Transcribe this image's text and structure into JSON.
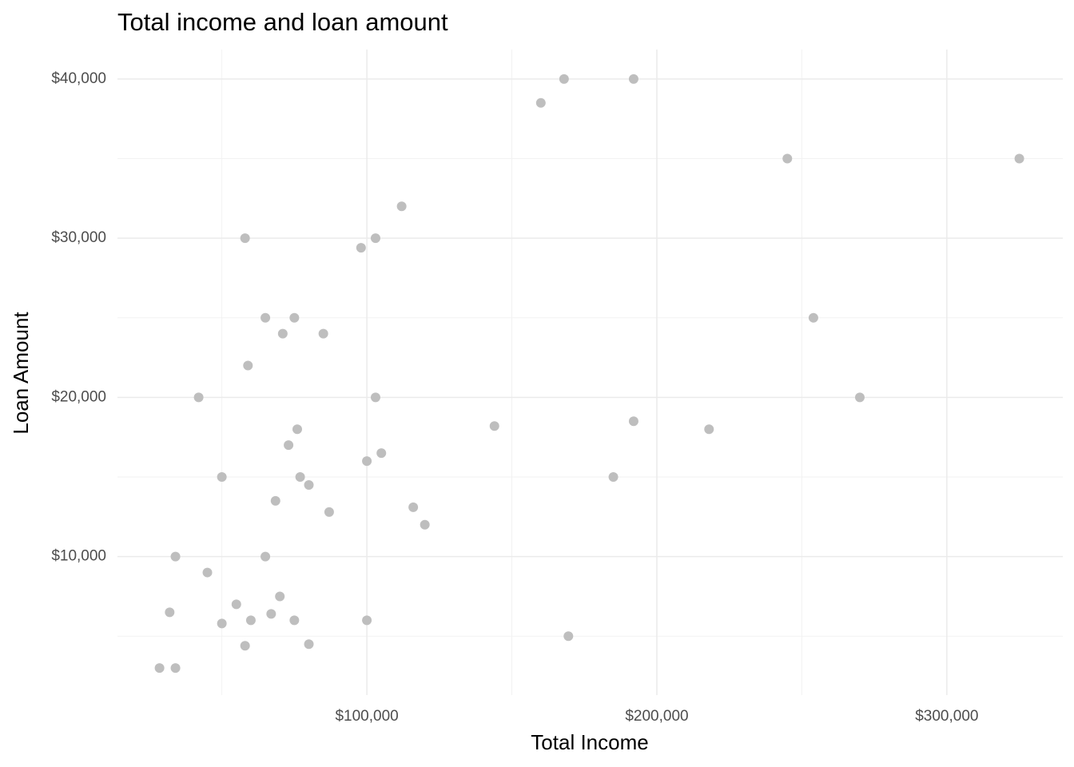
{
  "chart_data": {
    "type": "scatter",
    "title": "Total income and loan amount",
    "x_label": "Total Income",
    "y_label": "Loan Amount",
    "color": "#bebebe",
    "grid": true,
    "xlim": [
      14000,
      340000
    ],
    "ylim": [
      1300,
      41850
    ],
    "xticks": [
      {
        "value": 100000,
        "label": "$100,000"
      },
      {
        "value": 200000,
        "label": "$200,000"
      },
      {
        "value": 300000,
        "label": "$300,000"
      }
    ],
    "xminor": [
      50000,
      150000,
      250000
    ],
    "yticks": [
      {
        "value": 10000,
        "label": "$10,000"
      },
      {
        "value": 20000,
        "label": "$20,000"
      },
      {
        "value": 30000,
        "label": "$30,000"
      },
      {
        "value": 40000,
        "label": "$40,000"
      }
    ],
    "yminor": [
      5000,
      15000,
      25000,
      35000
    ],
    "x": [
      168000,
      192000,
      160000,
      245000,
      325000,
      112000,
      58000,
      103000,
      98000,
      65000,
      75000,
      254000,
      71000,
      85000,
      59000,
      42000,
      103000,
      270000,
      144000,
      192000,
      218000,
      76000,
      73000,
      105000,
      100000,
      50000,
      77000,
      185000,
      80000,
      68500,
      116000,
      87000,
      120000,
      34000,
      65000,
      45000,
      70000,
      55000,
      32000,
      67000,
      50000,
      60000,
      75000,
      100000,
      169500,
      58000,
      80000,
      28500,
      34000
    ],
    "values": [
      40000,
      40000,
      38500,
      35000,
      35000,
      32000,
      30000,
      30000,
      29400,
      25000,
      25000,
      25000,
      24000,
      24000,
      22000,
      20000,
      20000,
      20000,
      18200,
      18500,
      18000,
      18000,
      17000,
      16500,
      16000,
      15000,
      15000,
      15000,
      14500,
      13500,
      13100,
      12800,
      12000,
      10000,
      10000,
      9000,
      7500,
      7000,
      6500,
      6400,
      5800,
      6000,
      6000,
      6000,
      5000,
      4400,
      4500,
      3000,
      3000
    ]
  }
}
